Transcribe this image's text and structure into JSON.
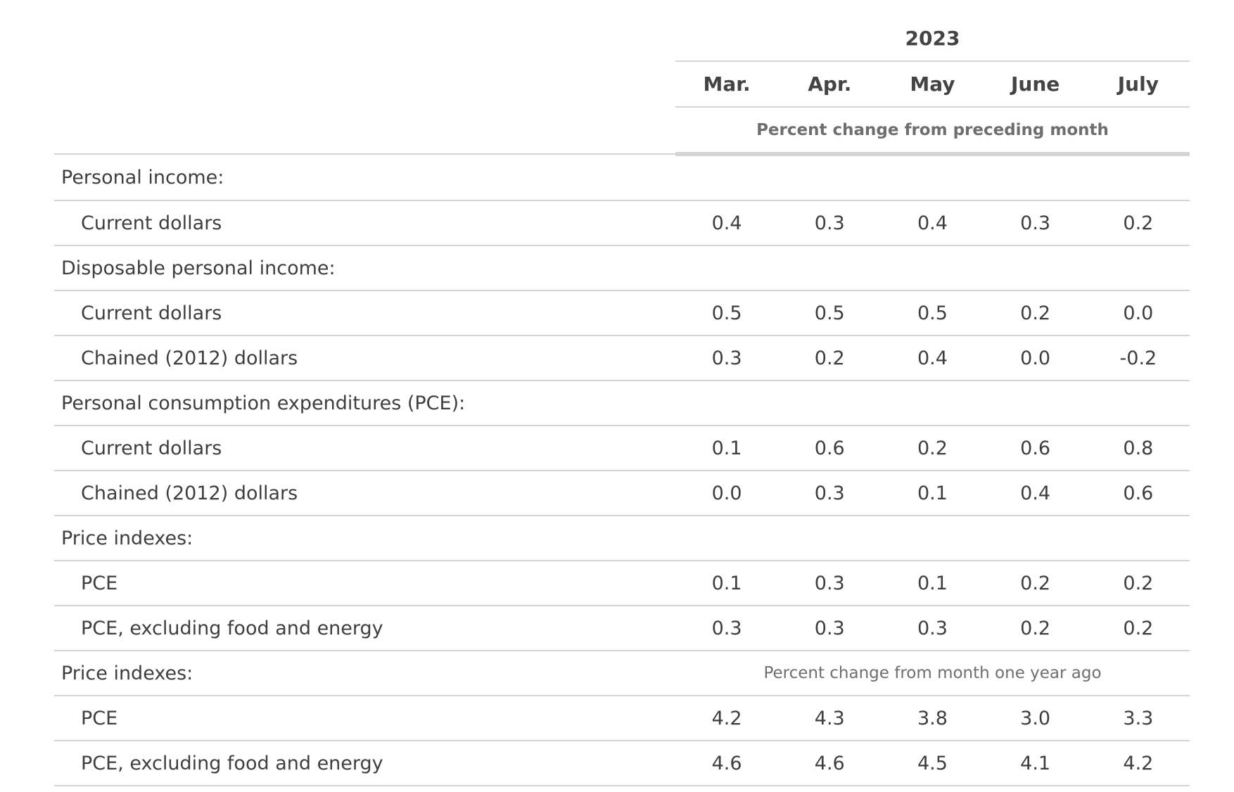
{
  "table": {
    "year": "2023",
    "months": [
      "Mar.",
      "Apr.",
      "May",
      "June",
      "July"
    ],
    "unit_monthly": "Percent change from preceding month",
    "unit_yearly": "Percent change from month one year ago",
    "rows": [
      {
        "label": "Personal income:"
      },
      {
        "label": "Current dollars",
        "values": [
          "0.4",
          "0.3",
          "0.4",
          "0.3",
          "0.2"
        ]
      },
      {
        "label": "Disposable personal income:"
      },
      {
        "label": "Current dollars",
        "values": [
          "0.5",
          "0.5",
          "0.5",
          "0.2",
          "0.0"
        ]
      },
      {
        "label": "Chained (2012) dollars",
        "values": [
          "0.3",
          "0.2",
          "0.4",
          "0.0",
          "-0.2"
        ]
      },
      {
        "label": "Personal consumption expenditures (PCE):"
      },
      {
        "label": "Current dollars",
        "values": [
          "0.1",
          "0.6",
          "0.2",
          "0.6",
          "0.8"
        ]
      },
      {
        "label": "Chained (2012) dollars",
        "values": [
          "0.0",
          "0.3",
          "0.1",
          "0.4",
          "0.6"
        ]
      },
      {
        "label": "Price indexes:"
      },
      {
        "label": "PCE",
        "values": [
          "0.1",
          "0.3",
          "0.1",
          "0.2",
          "0.2"
        ]
      },
      {
        "label": "PCE, excluding food and energy",
        "values": [
          "0.3",
          "0.3",
          "0.3",
          "0.2",
          "0.2"
        ]
      },
      {
        "label": "Price indexes:"
      },
      {
        "label": "PCE",
        "values": [
          "4.2",
          "4.3",
          "3.8",
          "3.0",
          "3.3"
        ]
      },
      {
        "label": "PCE, excluding food and energy",
        "values": [
          "4.6",
          "4.6",
          "4.5",
          "4.1",
          "4.2"
        ]
      }
    ]
  }
}
